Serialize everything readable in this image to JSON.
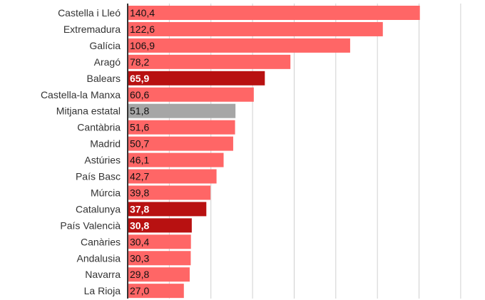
{
  "chart_data": {
    "type": "bar",
    "orientation": "horizontal",
    "categories": [
      "Castella i Lleó",
      "Extremadura",
      "Galícia",
      "Aragó",
      "Balears",
      "Castella-la Manxa",
      "Mitjana estatal",
      "Cantàbria",
      "Madrid",
      "Astúries",
      "País Basc",
      "Múrcia",
      "Catalunya",
      "País Valencià",
      "Canàries",
      "Andalusia",
      "Navarra",
      "La Rioja"
    ],
    "values": [
      140.4,
      122.6,
      106.9,
      78.2,
      65.9,
      60.6,
      51.8,
      51.6,
      50.7,
      46.1,
      42.7,
      39.8,
      37.8,
      30.8,
      30.4,
      30.3,
      29.8,
      27.0
    ],
    "value_labels": [
      "140,4",
      "122,6",
      "106,9",
      "78,2",
      "65,9",
      "60,6",
      "51,8",
      "51,6",
      "50,7",
      "46,1",
      "42,7",
      "39,8",
      "37,8",
      "30,8",
      "30,4",
      "30,3",
      "29,8",
      "27,0"
    ],
    "highlight": [
      "normal",
      "normal",
      "normal",
      "normal",
      "dark",
      "normal",
      "average",
      "normal",
      "normal",
      "normal",
      "normal",
      "normal",
      "dark",
      "dark",
      "normal",
      "normal",
      "normal",
      "normal"
    ],
    "colors": {
      "normal": "#ff6666",
      "dark": "#b81111",
      "average": "#a6a6a6",
      "grid": "#d0d0d0",
      "axis": "#333333"
    },
    "xlim": [
      0,
      160
    ],
    "grid_step": 20,
    "grid": true,
    "title": "",
    "xlabel": "",
    "ylabel": ""
  }
}
